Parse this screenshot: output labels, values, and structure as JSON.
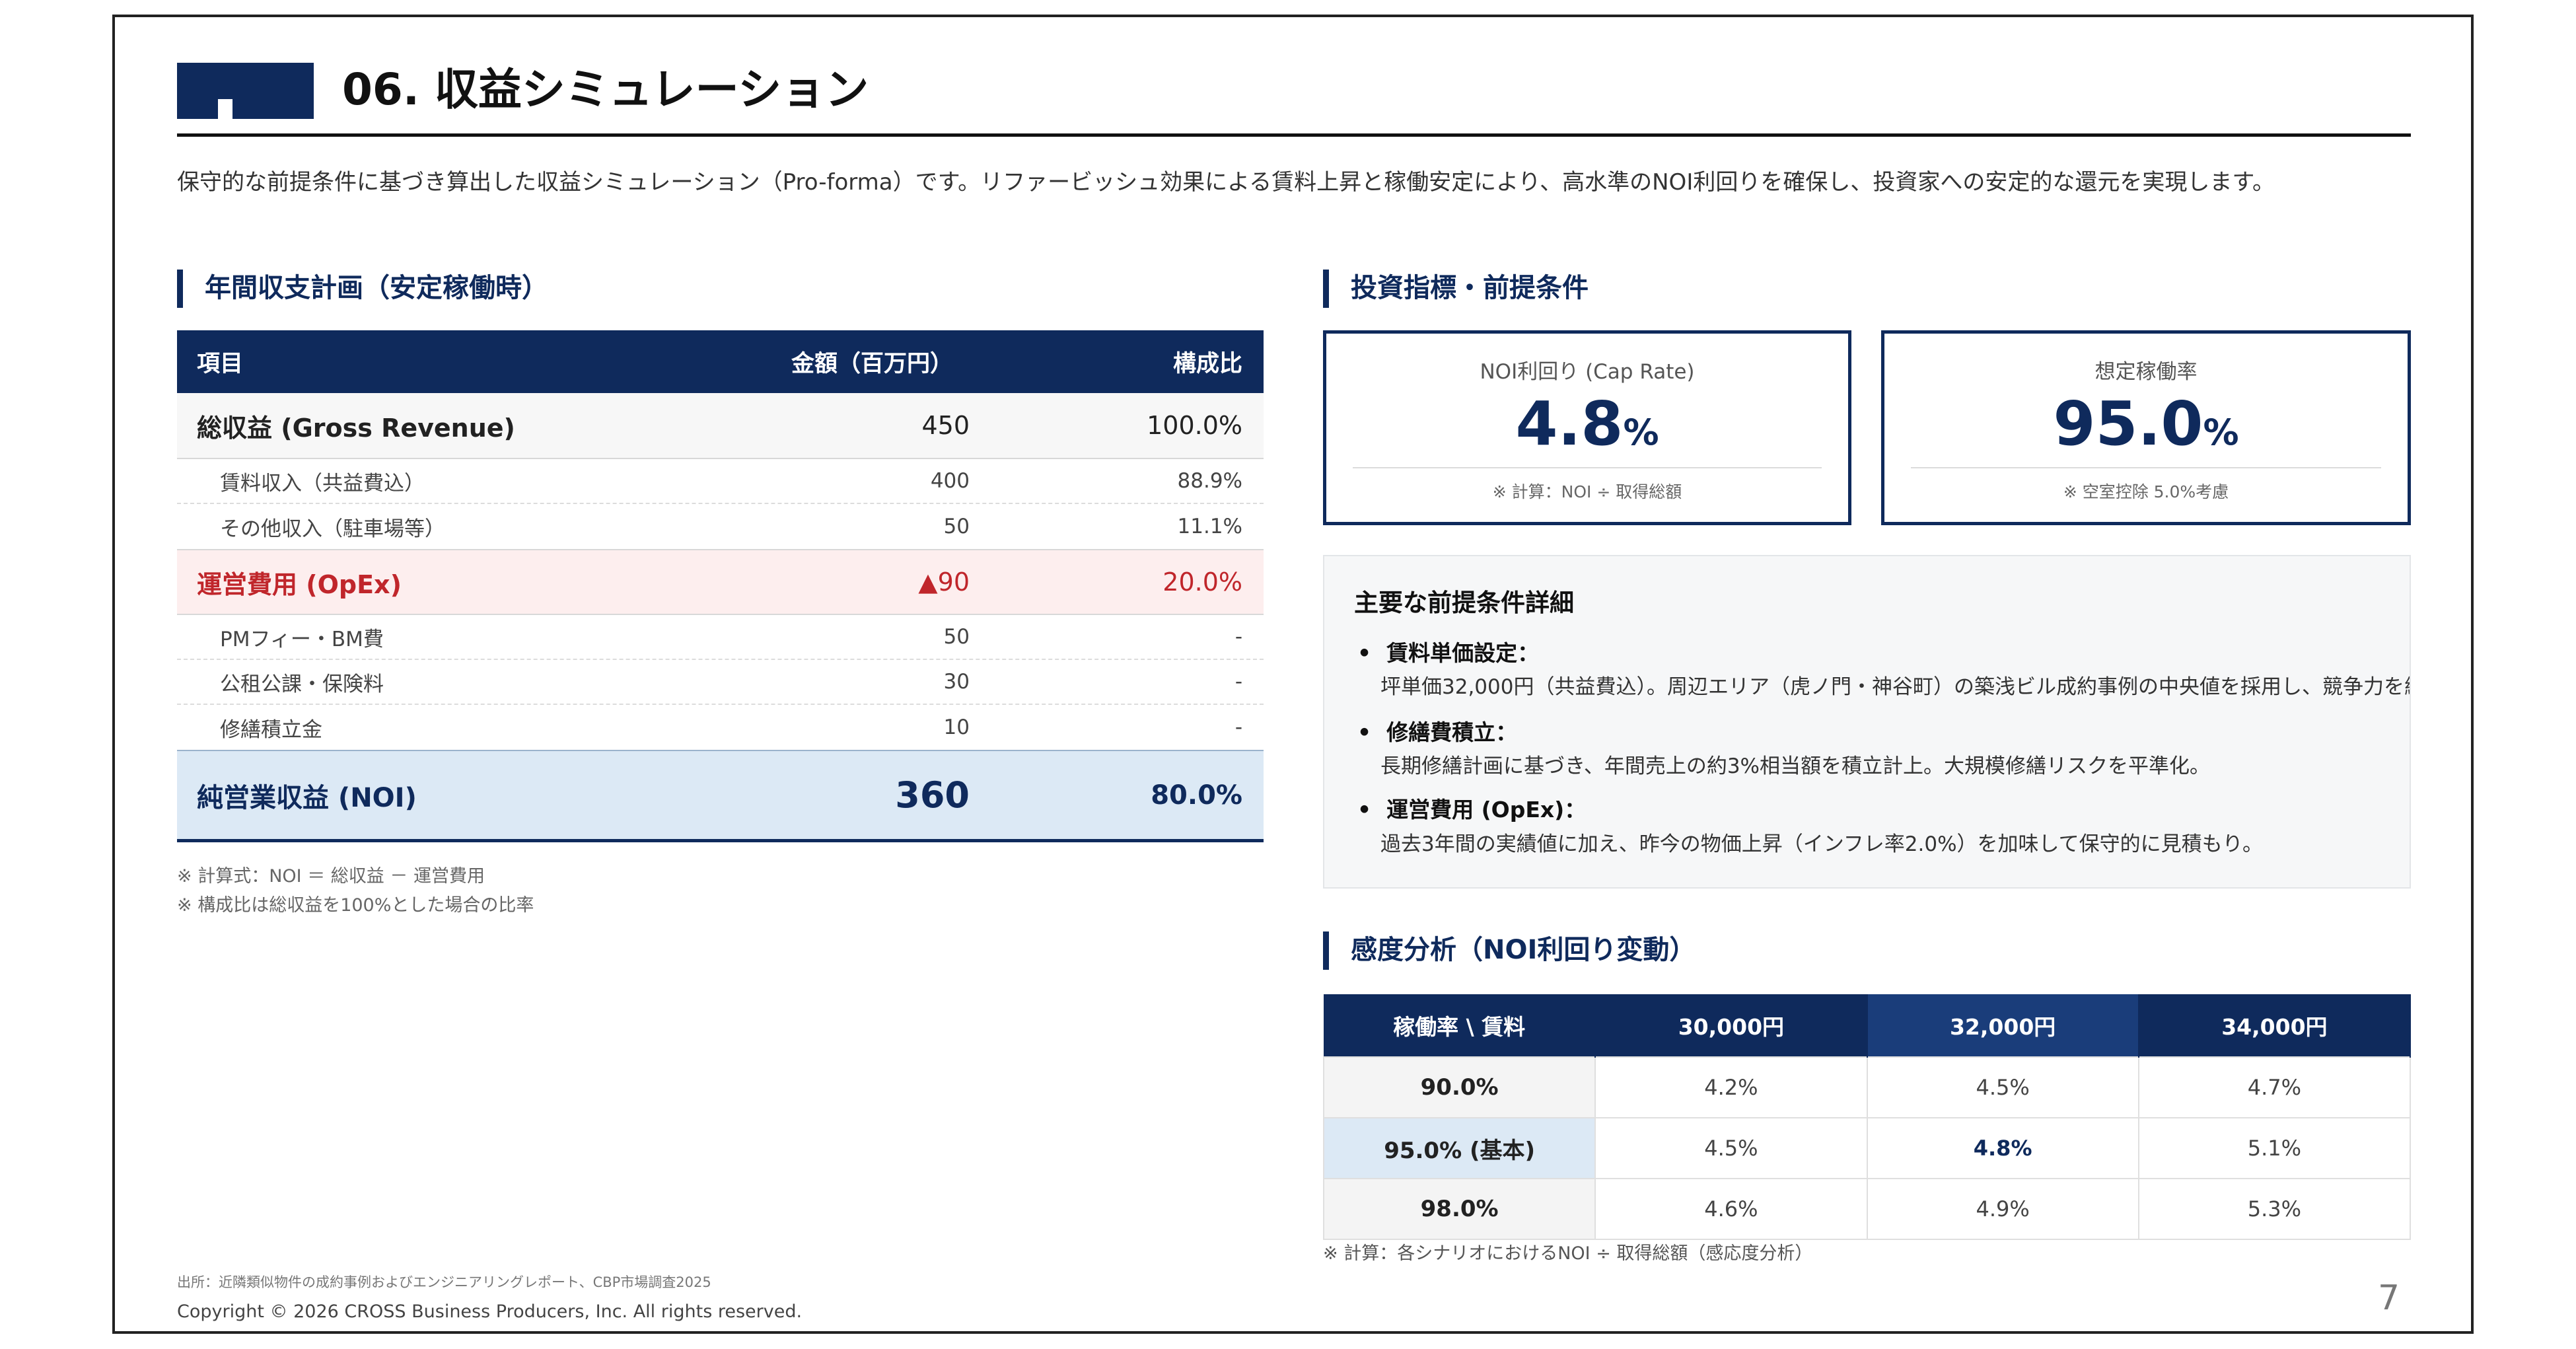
{
  "header": {
    "title": "06. 収益シミュレーション",
    "intro": "保守的な前提条件に基づき算出した収益シミュレーション（Pro-forma）です。リファービッシュ効果による賃料上昇と稼働安定により、高水準のNOI利回りを確保し、投資家への安定的な還元を実現します。"
  },
  "income": {
    "section_title": "年間収支計画（安定稼働時）",
    "columns": [
      "項目",
      "金額（百万円）",
      "構成比"
    ],
    "revenue": {
      "label": "総収益 (Gross Revenue)",
      "amount": "450",
      "ratio": "100.0%"
    },
    "revenue_items": [
      {
        "label": "賃料収入（共益費込）",
        "amount": "400",
        "ratio": "88.9%"
      },
      {
        "label": "その他収入（駐車場等）",
        "amount": "50",
        "ratio": "11.1%"
      }
    ],
    "opex": {
      "label": "運営費用 (OpEx)",
      "amount": "▲90",
      "ratio": "20.0%"
    },
    "opex_items": [
      {
        "label": "PMフィー・BM費",
        "amount": "50",
        "ratio": "-"
      },
      {
        "label": "公租公課・保険料",
        "amount": "30",
        "ratio": "-"
      },
      {
        "label": "修繕積立金",
        "amount": "10",
        "ratio": "-"
      }
    ],
    "noi": {
      "label": "純営業収益 (NOI)",
      "amount": "360",
      "ratio": "80.0%"
    },
    "notes": [
      "※ 計算式：NOI ＝ 総収益 － 運営費用",
      "※ 構成比は総収益を100%とした場合の比率"
    ]
  },
  "kpi": {
    "section_title": "投資指標・前提条件",
    "cards": [
      {
        "label": "NOI利回り (Cap Rate)",
        "value": "4.8",
        "unit": "%",
        "note": "※ 計算：NOI ÷ 取得総額"
      },
      {
        "label": "想定稼働率",
        "value": "95.0",
        "unit": "%",
        "note": "※ 空室控除 5.0%考慮"
      }
    ]
  },
  "assumptions": {
    "title": "主要な前提条件詳細",
    "items": [
      {
        "title": "賃料単価設定：",
        "desc": "坪単価32,000円（共益費込）。周辺エリア（虎ノ門・神谷町）の築浅ビル成約事例の中央値を採用し、競争力を維"
      },
      {
        "title": "修繕費積立：",
        "desc": "長期修繕計画に基づき、年間売上の約3%相当額を積立計上。大規模修繕リスクを平準化。"
      },
      {
        "title": "運営費用 (OpEx)：",
        "desc": "過去3年間の実績値に加え、昨今の物価上昇（インフレ率2.0%）を加味して保守的に見積もり。"
      }
    ]
  },
  "sensitivity": {
    "section_title": "感度分析（NOI利回り変動）",
    "corner": "稼働率 \\ 賃料",
    "columns": [
      "30,000円",
      "32,000円",
      "34,000円"
    ],
    "rows": [
      {
        "label": "90.0%",
        "values": [
          "4.2%",
          "4.5%",
          "4.7%"
        ]
      },
      {
        "label": "95.0% (基本)",
        "values": [
          "4.5%",
          "4.8%",
          "5.1%"
        ]
      },
      {
        "label": "98.0%",
        "values": [
          "4.6%",
          "4.9%",
          "5.3%"
        ]
      }
    ],
    "note": "※ 計算：各シナリオにおけるNOI ÷ 取得総額（感応度分析）"
  },
  "footer": {
    "source": "出所：近隣類似物件の成約事例およびエンジニアリングレポート、CBP市場調査2025",
    "copyright": "Copyright © 2026 CROSS Business Producers, Inc. All rights reserved.",
    "page": "7"
  },
  "colors": {
    "navy": "#0f2a5c",
    "red": "#c0262b",
    "light_blue": "#dce9f5",
    "pink": "#fdeeee"
  }
}
